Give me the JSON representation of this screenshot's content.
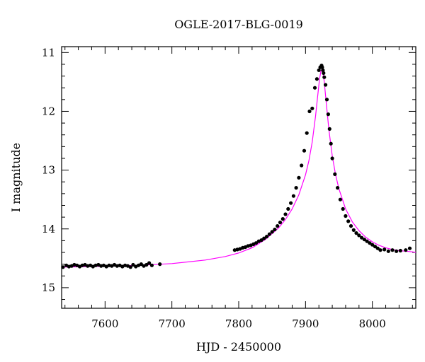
{
  "chart_data": {
    "type": "scatter",
    "title": "OGLE-2017-BLG-0019",
    "xlabel": "HJD - 2450000",
    "ylabel": "I magnitude",
    "xlim": [
      7535,
      8065
    ],
    "ylim": [
      15.35,
      10.9
    ],
    "y_inverted": true,
    "grid": false,
    "xticks": [
      7600,
      7700,
      7800,
      7900,
      8000
    ],
    "xtick_labels": [
      "7600",
      "7700",
      "7800",
      "7900",
      "8000"
    ],
    "yticks": [
      11,
      12,
      13,
      14,
      15
    ],
    "ytick_labels": [
      "11",
      "12",
      "13",
      "14",
      "15"
    ],
    "colors": {
      "data": "#000000",
      "model": "#ff00ff"
    },
    "series": [
      {
        "kind": "points",
        "x": [
          7537,
          7542,
          7546,
          7550,
          7554,
          7558,
          7562,
          7566,
          7570,
          7574,
          7578,
          7582,
          7586,
          7590,
          7594,
          7598,
          7602,
          7606,
          7610,
          7614,
          7618,
          7622,
          7626,
          7630,
          7634,
          7638,
          7642,
          7646,
          7650,
          7654,
          7658,
          7662,
          7666,
          7670,
          7682,
          7794,
          7798,
          7802,
          7806,
          7810,
          7814,
          7818,
          7822,
          7826,
          7830,
          7834,
          7838,
          7842,
          7846,
          7850,
          7854,
          7858,
          7862,
          7866,
          7870,
          7874,
          7878,
          7882,
          7886,
          7890,
          7894,
          7898,
          7902,
          7906,
          7910,
          7914,
          7917,
          7920,
          7922,
          7924,
          7925,
          7926,
          7927,
          7928,
          7930,
          7932,
          7934,
          7936,
          7938,
          7940,
          7944,
          7948,
          7952,
          7956,
          7960,
          7964,
          7968,
          7972,
          7976,
          7980,
          7984,
          7988,
          7992,
          7996,
          8000,
          8004,
          8008,
          8012,
          8018,
          8024,
          8030,
          8036,
          8042,
          8050,
          8056
        ],
        "y": [
          14.65,
          14.62,
          14.64,
          14.63,
          14.61,
          14.62,
          14.64,
          14.62,
          14.61,
          14.63,
          14.62,
          14.64,
          14.62,
          14.61,
          14.63,
          14.62,
          14.64,
          14.62,
          14.63,
          14.61,
          14.63,
          14.62,
          14.64,
          14.62,
          14.63,
          14.65,
          14.61,
          14.64,
          14.62,
          14.6,
          14.63,
          14.61,
          14.58,
          14.62,
          14.6,
          14.36,
          14.35,
          14.34,
          14.32,
          14.31,
          14.29,
          14.28,
          14.26,
          14.24,
          14.21,
          14.19,
          14.16,
          14.13,
          14.09,
          14.05,
          14.01,
          13.95,
          13.89,
          13.83,
          13.75,
          13.66,
          13.56,
          13.44,
          13.3,
          13.13,
          12.92,
          12.67,
          12.37,
          12.0,
          11.95,
          11.6,
          11.45,
          11.3,
          11.25,
          11.22,
          11.25,
          11.3,
          11.35,
          11.42,
          11.55,
          11.8,
          12.05,
          12.3,
          12.55,
          12.8,
          13.07,
          13.3,
          13.5,
          13.66,
          13.78,
          13.87,
          13.95,
          14.02,
          14.07,
          14.11,
          14.15,
          14.18,
          14.21,
          14.24,
          14.27,
          14.3,
          14.33,
          14.36,
          14.35,
          14.38,
          14.36,
          14.38,
          14.37,
          14.36,
          14.33
        ]
      },
      {
        "kind": "model-curve",
        "x": [
          7535,
          7560,
          7600,
          7650,
          7700,
          7750,
          7780,
          7800,
          7820,
          7840,
          7860,
          7870,
          7880,
          7890,
          7900,
          7905,
          7910,
          7915,
          7918,
          7921,
          7923,
          7924.5,
          7926,
          7928,
          7931,
          7935,
          7940,
          7945,
          7950,
          7960,
          7970,
          7980,
          7990,
          8000,
          8010,
          8020,
          8030,
          8040,
          8050,
          8060,
          8065
        ],
        "y": [
          14.65,
          14.645,
          14.635,
          14.62,
          14.59,
          14.53,
          14.47,
          14.41,
          14.32,
          14.18,
          13.98,
          13.84,
          13.66,
          13.42,
          13.08,
          12.84,
          12.52,
          12.08,
          11.76,
          11.44,
          11.32,
          11.28,
          11.33,
          11.5,
          11.86,
          12.32,
          12.76,
          13.08,
          13.32,
          13.66,
          13.88,
          14.03,
          14.14,
          14.22,
          14.28,
          14.32,
          14.35,
          14.37,
          14.38,
          14.39,
          14.4
        ]
      }
    ]
  }
}
